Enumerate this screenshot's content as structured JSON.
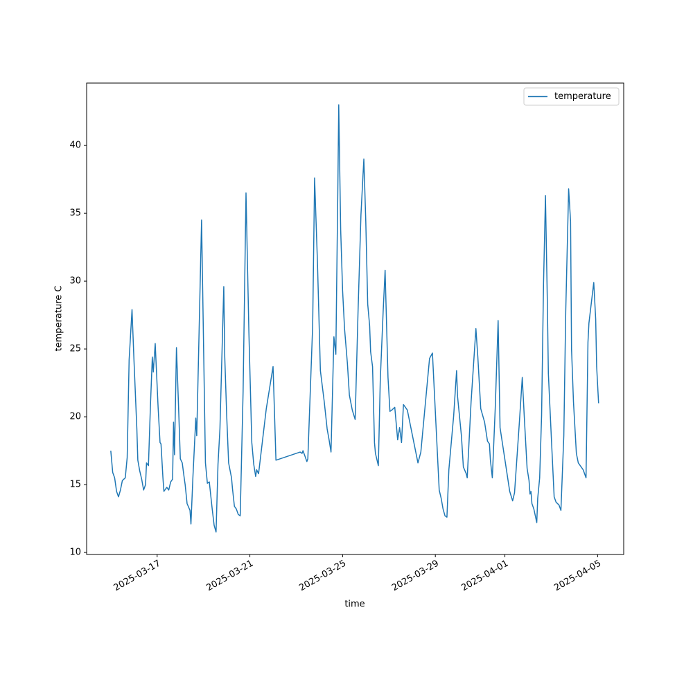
{
  "chart_data": {
    "type": "line",
    "x_label": "time",
    "y_label": "temperature C",
    "x": [
      "2025-03-15T00:00",
      "2025-03-15T02:00",
      "2025-03-15T04:00",
      "2025-03-15T06:00",
      "2025-03-15T08:00",
      "2025-03-15T10:00",
      "2025-03-15T12:00",
      "2025-03-15T15:00",
      "2025-03-15T17:00",
      "2025-03-15T19:00",
      "2025-03-15T22:00",
      "2025-03-16T00:00",
      "2025-03-16T03:00",
      "2025-03-16T04:00",
      "2025-03-16T06:00",
      "2025-03-16T08:00",
      "2025-03-16T10:00",
      "2025-03-16T12:00",
      "2025-03-16T13:00",
      "2025-03-16T15:00",
      "2025-03-16T17:00",
      "2025-03-16T19:00",
      "2025-03-16T20:00",
      "2025-03-16T22:00",
      "2025-03-17T01:00",
      "2025-03-17T03:00",
      "2025-03-17T04:00",
      "2025-03-17T06:00",
      "2025-03-17T07:00",
      "2025-03-17T10:00",
      "2025-03-17T12:00",
      "2025-03-17T14:00",
      "2025-03-17T16:00",
      "2025-03-17T17:00",
      "2025-03-17T18:00",
      "2025-03-17T20:00",
      "2025-03-17T22:00",
      "2025-03-18T00:00",
      "2025-03-18T02:00",
      "2025-03-18T04:00",
      "2025-03-18T05:00",
      "2025-03-18T07:00",
      "2025-03-18T10:00",
      "2025-03-18T11:00",
      "2025-03-18T13:00",
      "2025-03-18T16:00",
      "2025-03-18T17:00",
      "2025-03-18T19:00",
      "2025-03-18T22:00",
      "2025-03-19T01:00",
      "2025-03-19T02:00",
      "2025-03-19T04:00",
      "2025-03-19T06:00",
      "2025-03-19T09:00",
      "2025-03-19T11:00",
      "2025-03-19T13:00",
      "2025-03-19T15:00",
      "2025-03-19T17:00",
      "2025-03-19T21:00",
      "2025-03-19T22:00",
      "2025-03-20T00:00",
      "2025-03-20T02:00",
      "2025-03-20T05:00",
      "2025-03-20T06:00",
      "2025-03-20T08:00",
      "2025-03-20T10:00",
      "2025-03-20T12:00",
      "2025-03-20T14:00",
      "2025-03-20T17:00",
      "2025-03-20T20:00",
      "2025-03-20T23:00",
      "2025-03-21T02:00",
      "2025-03-21T04:00",
      "2025-03-21T06:00",
      "2025-03-21T07:00",
      "2025-03-21T09:00",
      "2025-03-21T17:00",
      "2025-03-22T00:00",
      "2025-03-22T03:00",
      "2025-03-23T04:00",
      "2025-03-23T06:00",
      "2025-03-23T07:00",
      "2025-03-23T09:00",
      "2025-03-23T11:00",
      "2025-03-23T12:00",
      "2025-03-23T17:00",
      "2025-03-23T19:00",
      "2025-03-23T22:00",
      "2025-03-24T01:00",
      "2025-03-24T05:00",
      "2025-03-24T08:00",
      "2025-03-24T10:00",
      "2025-03-24T12:00",
      "2025-03-24T15:00",
      "2025-03-24T17:00",
      "2025-03-24T19:00",
      "2025-03-24T20:00",
      "2025-03-24T22:00",
      "2025-03-25T00:00",
      "2025-03-25T02:00",
      "2025-03-25T05:00",
      "2025-03-25T07:00",
      "2025-03-25T10:00",
      "2025-03-25T13:00",
      "2025-03-25T16:00",
      "2025-03-25T19:00",
      "2025-03-25T22:00",
      "2025-03-26T00:00",
      "2025-03-26T02:00",
      "2025-03-26T04:00",
      "2025-03-26T05:00",
      "2025-03-26T07:00",
      "2025-03-26T09:00",
      "2025-03-26T10:00",
      "2025-03-26T13:00",
      "2025-03-26T15:00",
      "2025-03-26T18:00",
      "2025-03-26T20:00",
      "2025-03-26T23:00",
      "2025-03-27T01:00",
      "2025-03-27T03:00",
      "2025-03-27T06:00",
      "2025-03-27T09:00",
      "2025-03-27T11:00",
      "2025-03-27T13:00",
      "2025-03-27T15:00",
      "2025-03-27T19:00",
      "2025-03-28T06:00",
      "2025-03-28T09:00",
      "2025-03-28T18:00",
      "2025-03-28T21:00",
      "2025-03-29T04:00",
      "2025-03-29T06:00",
      "2025-03-29T08:00",
      "2025-03-29T10:00",
      "2025-03-29T12:00",
      "2025-03-29T14:00",
      "2025-03-29T19:00",
      "2025-03-29T22:00",
      "2025-03-29T23:00",
      "2025-03-30T03:00",
      "2025-03-30T05:00",
      "2025-03-30T08:00",
      "2025-03-30T09:00",
      "2025-03-30T13:00",
      "2025-03-30T18:00",
      "2025-03-30T20:00",
      "2025-03-30T23:00",
      "2025-03-31T03:00",
      "2025-03-31T06:00",
      "2025-03-31T08:00",
      "2025-03-31T09:00",
      "2025-03-31T11:00",
      "2025-03-31T14:00",
      "2025-03-31T17:00",
      "2025-03-31T19:00",
      "2025-04-01T05:00",
      "2025-04-01T08:00",
      "2025-04-01T10:00",
      "2025-04-01T15:00",
      "2025-04-01T18:00",
      "2025-04-01T20:00",
      "2025-04-01T23:00",
      "2025-04-02T01:00",
      "2025-04-02T02:00",
      "2025-04-02T03:00",
      "2025-04-02T04:00",
      "2025-04-02T06:00",
      "2025-04-02T09:00",
      "2025-04-02T10:00",
      "2025-04-02T12:00",
      "2025-04-02T14:00",
      "2025-04-02T16:00",
      "2025-04-02T18:00",
      "2025-04-02T20:00",
      "2025-04-02T21:00",
      "2025-04-03T00:00",
      "2025-04-03T03:00",
      "2025-04-03T05:00",
      "2025-04-03T08:00",
      "2025-04-03T10:00",
      "2025-04-03T13:00",
      "2025-04-03T15:00",
      "2025-04-03T18:00",
      "2025-04-03T20:00",
      "2025-04-03T21:00",
      "2025-04-03T23:00",
      "2025-04-04T02:00",
      "2025-04-04T04:00",
      "2025-04-04T09:00",
      "2025-04-04T12:00",
      "2025-04-04T14:00",
      "2025-04-04T15:00",
      "2025-04-04T20:00",
      "2025-04-04T22:00",
      "2025-04-04T23:00",
      "2025-04-05T01:00"
    ],
    "series": [
      {
        "name": "temperature",
        "color": "#1f77b4",
        "values": [
          17.5,
          15.9,
          15.5,
          14.5,
          14.1,
          14.6,
          15.3,
          15.5,
          17.0,
          24.2,
          27.9,
          24.2,
          19.1,
          16.8,
          16.0,
          15.4,
          14.6,
          15.0,
          16.6,
          16.4,
          20.7,
          24.4,
          23.3,
          25.4,
          20.7,
          18.1,
          18.0,
          15.5,
          14.5,
          14.8,
          14.6,
          15.2,
          15.4,
          19.6,
          17.2,
          25.1,
          21.1,
          16.9,
          16.6,
          15.5,
          15.0,
          13.6,
          13.1,
          12.1,
          15.5,
          19.9,
          18.6,
          24.9,
          34.5,
          21.1,
          16.6,
          15.1,
          15.2,
          13.2,
          12.0,
          11.5,
          16.5,
          19.1,
          29.6,
          24.4,
          20.1,
          16.6,
          15.5,
          14.7,
          13.4,
          13.2,
          12.8,
          12.7,
          21.9,
          36.5,
          26.2,
          18.1,
          16.5,
          15.6,
          16.1,
          15.8,
          20.6,
          23.7,
          16.8,
          17.4,
          17.3,
          17.5,
          17.1,
          16.7,
          16.9,
          26.7,
          37.6,
          31.3,
          23.4,
          21.1,
          19.1,
          18.3,
          17.4,
          25.9,
          24.6,
          36.4,
          43.0,
          33.8,
          29.3,
          26.5,
          23.9,
          21.6,
          20.5,
          19.8,
          27.8,
          34.9,
          39.0,
          34.4,
          28.3,
          26.7,
          24.8,
          23.7,
          18.1,
          17.3,
          16.4,
          22.7,
          27.8,
          30.8,
          22.9,
          20.4,
          20.5,
          20.7,
          18.3,
          19.2,
          18.1,
          20.9,
          20.5,
          16.6,
          17.4,
          24.3,
          24.7,
          14.6,
          14.0,
          13.2,
          12.7,
          12.6,
          16.1,
          20.1,
          23.4,
          21.5,
          18.6,
          16.3,
          15.8,
          15.5,
          21.1,
          26.5,
          24.4,
          20.6,
          19.6,
          18.2,
          18.0,
          16.8,
          15.5,
          20.6,
          27.1,
          19.2,
          14.5,
          13.8,
          14.4,
          19.6,
          22.9,
          20.1,
          16.2,
          15.3,
          14.3,
          14.5,
          13.6,
          13.2,
          12.2,
          14.0,
          15.5,
          20.1,
          29.8,
          36.3,
          28.3,
          23.2,
          18.6,
          14.1,
          13.7,
          13.5,
          13.1,
          18.6,
          27.8,
          36.8,
          34.4,
          25.0,
          21.1,
          17.3,
          16.6,
          16.1,
          15.5,
          25.5,
          26.9,
          29.9,
          27.2,
          23.7,
          21.0
        ]
      }
    ],
    "xlim": [
      "2025-03-13T23:00",
      "2025-04-06T03:00"
    ],
    "xticks": [
      "2025-03-17",
      "2025-03-21",
      "2025-03-25",
      "2025-03-29",
      "2025-04-01",
      "2025-04-05"
    ],
    "ylim": [
      9.85,
      44.6
    ],
    "yticks": [
      10,
      15,
      20,
      25,
      30,
      35,
      40
    ],
    "grid": false,
    "legend": "upper right"
  }
}
